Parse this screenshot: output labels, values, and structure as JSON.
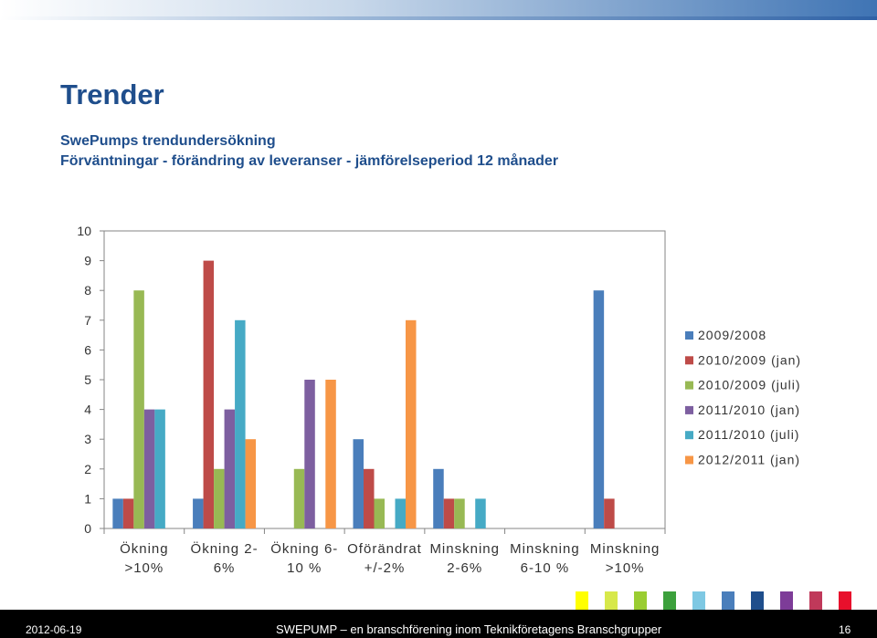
{
  "header": {
    "title": "Trender",
    "subtitle_1": "SwePumps trendundersökning",
    "subtitle_2": "Förväntningar - förändring av leveranser - jämförelseperiod 12 månader"
  },
  "chart_data": {
    "type": "bar",
    "categories": [
      [
        "Ökning",
        ">10%"
      ],
      [
        "Ökning 2-",
        "6%"
      ],
      [
        "Ökning 6-",
        "10 %"
      ],
      [
        "Oförändrat",
        "+/-2%"
      ],
      [
        "Minskning",
        "2-6%"
      ],
      [
        "Minskning",
        "6-10 %"
      ],
      [
        "Minskning",
        ">10%"
      ]
    ],
    "series": [
      {
        "name": "2009/2008",
        "color": "#4a7ebb",
        "values": [
          1,
          1,
          0,
          3,
          2,
          0,
          8
        ]
      },
      {
        "name": "2010/2009 (jan)",
        "color": "#be4b48",
        "values": [
          1,
          9,
          0,
          2,
          1,
          0,
          1
        ]
      },
      {
        "name": "2010/2009 (juli)",
        "color": "#98b954",
        "values": [
          8,
          2,
          2,
          1,
          1,
          0,
          0
        ]
      },
      {
        "name": "2011/2010 (jan)",
        "color": "#7d5fa0",
        "values": [
          4,
          4,
          5,
          0,
          0,
          0,
          0
        ]
      },
      {
        "name": "2011/2010 (juli)",
        "color": "#46aac5",
        "values": [
          4,
          7,
          0,
          1,
          1,
          0,
          0
        ]
      },
      {
        "name": "2012/2011 (jan)",
        "color": "#f79646",
        "values": [
          0,
          3,
          5,
          7,
          0,
          0,
          0
        ]
      }
    ],
    "yticks": [
      0,
      1,
      2,
      3,
      4,
      5,
      6,
      7,
      8,
      9,
      10
    ],
    "ylim": [
      0,
      10
    ],
    "legend": "right",
    "grid": false
  },
  "footer": {
    "date": "2012-06-19",
    "text": "SWEPUMP – en branschförening inom Teknikföretagens Branschgrupper",
    "page": "16",
    "swatches": [
      "#ffff00",
      "#d7e84a",
      "#9acd32",
      "#3ca03c",
      "#7ec8e3",
      "#4a7ebb",
      "#1f4e8c",
      "#7d3c98",
      "#c0395a",
      "#e8102c"
    ]
  }
}
